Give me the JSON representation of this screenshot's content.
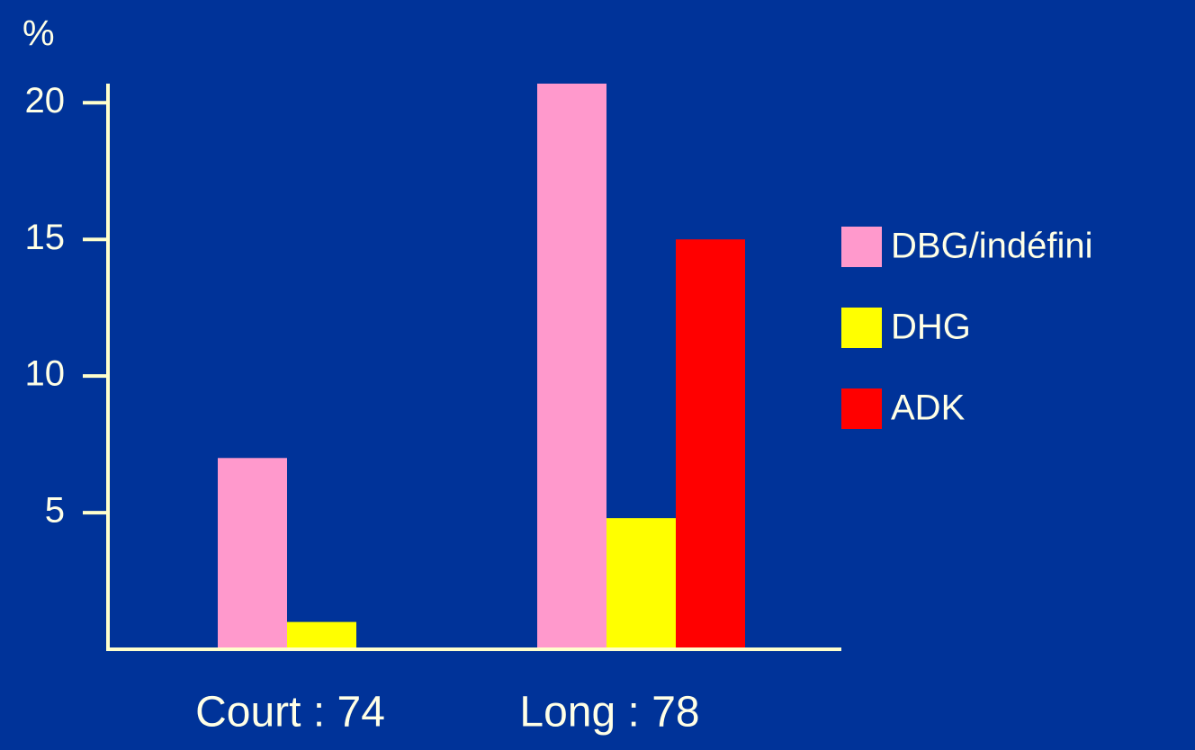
{
  "chart_data": {
    "type": "bar",
    "y_label": "%",
    "categories": [
      "Court : 74",
      "Long : 78"
    ],
    "series": [
      {
        "name": "DBG/indéfini",
        "color": "#ff99cc",
        "values": [
          7,
          20.7
        ]
      },
      {
        "name": "DHG",
        "color": "#ffff00",
        "values": [
          1,
          4.8
        ]
      },
      {
        "name": "ADK",
        "color": "#ff0000",
        "values": [
          null,
          15
        ]
      }
    ],
    "ylim": [
      0,
      20.7
    ],
    "yticks": [
      5,
      10,
      15,
      20
    ],
    "legend": "right"
  }
}
